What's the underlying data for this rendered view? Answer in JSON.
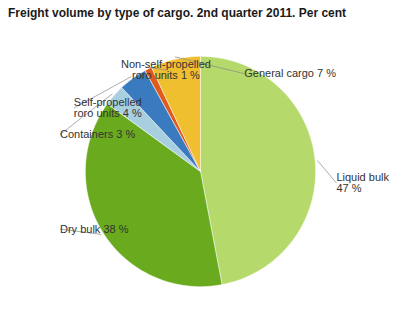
{
  "chart_data": {
    "type": "pie",
    "title": "Freight volume by type of cargo. 2nd quarter 2011. Per cent",
    "categories": [
      "Liquid bulk\n47 %",
      "Dry bulk 38 %",
      "Containers 3 %",
      "Self-propelled\nroro units 4 %",
      "Non-self-propelled\nroro units 1 %",
      "General cargo 7 %"
    ],
    "values": [
      47,
      38,
      3,
      4,
      1,
      7
    ],
    "colors": [
      "#b5d96b",
      "#6aaa1e",
      "#a8cfe0",
      "#3a7abf",
      "#e05a1e",
      "#f0bf30"
    ]
  }
}
